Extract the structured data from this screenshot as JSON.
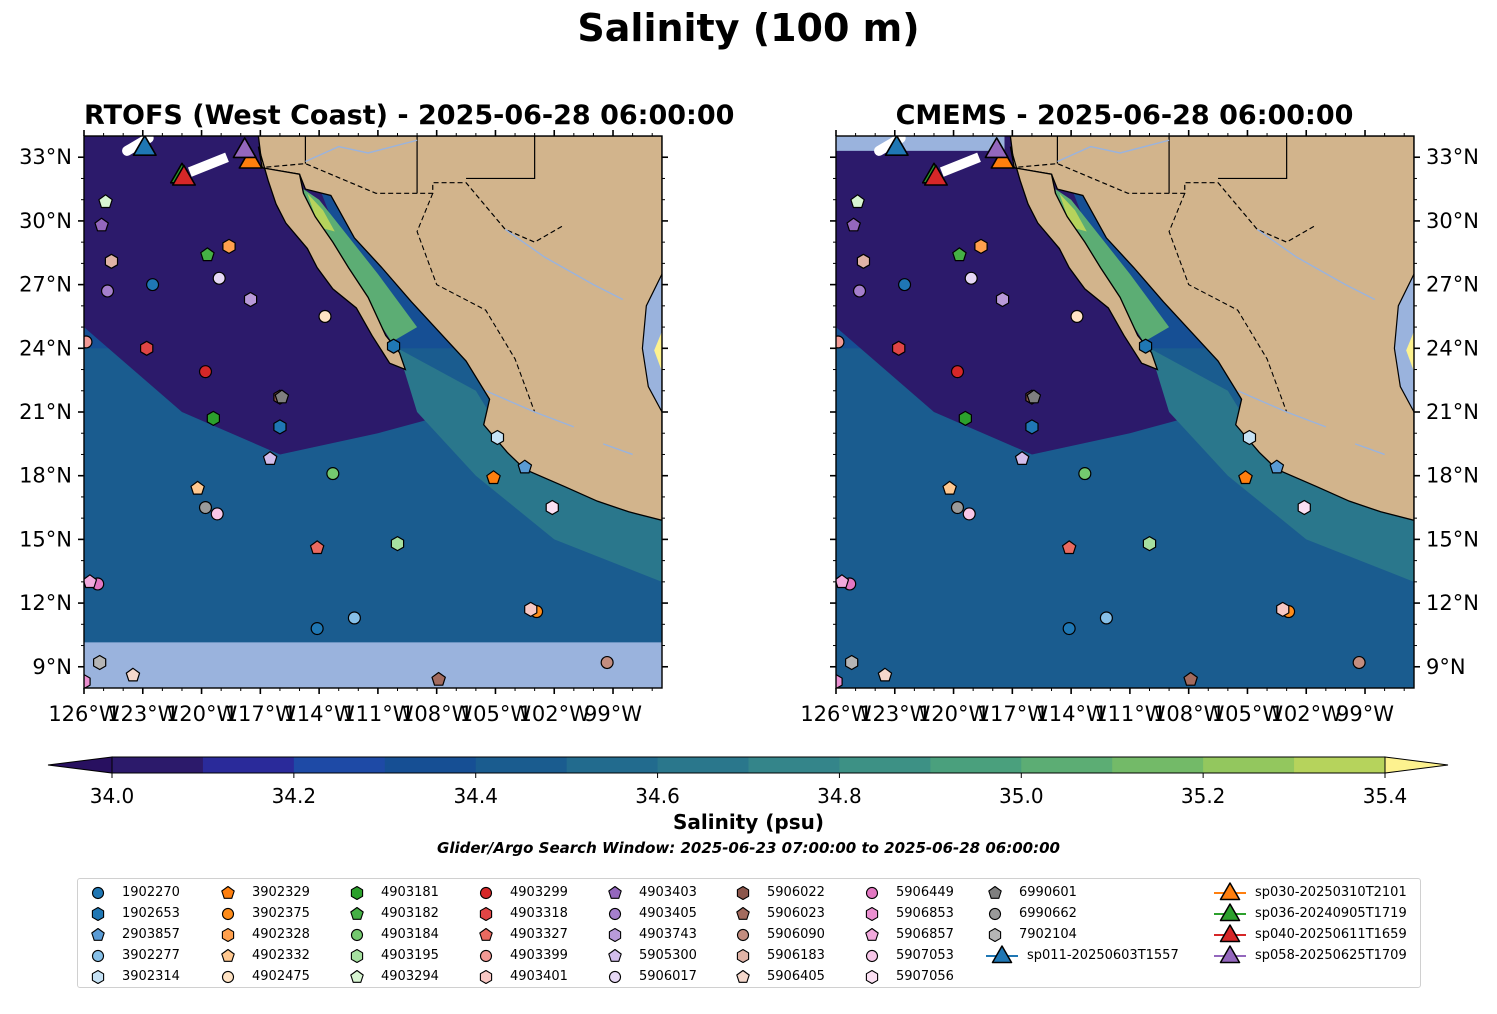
{
  "title": "Salinity (100 m)",
  "panels": [
    {
      "id": "rtofs",
      "title": "RTOFS (West Coast) - 2025-06-28 06:00:00"
    },
    {
      "id": "cmems",
      "title": "CMEMS - 2025-06-28 06:00:00"
    }
  ],
  "map_extent": {
    "lon": [
      -126,
      -96.5
    ],
    "lat": [
      8,
      34
    ]
  },
  "lon_ticks": [
    "126°W",
    "123°W",
    "120°W",
    "117°W",
    "114°W",
    "111°W",
    "108°W",
    "105°W",
    "102°W",
    "99°W"
  ],
  "lat_ticks": [
    "33°N",
    "30°N",
    "27°N",
    "24°N",
    "21°N",
    "18°N",
    "15°N",
    "12°N",
    "9°N"
  ],
  "colorbar": {
    "label": "Salinity (psu)",
    "ticks": [
      "34.0",
      "34.2",
      "34.4",
      "34.6",
      "34.8",
      "35.0",
      "35.2",
      "35.4"
    ],
    "range": [
      34.0,
      35.4
    ],
    "colors": [
      "#2c1a6b",
      "#2a2a9a",
      "#1e4aa6",
      "#164f94",
      "#1a5c8f",
      "#226b8e",
      "#2a778c",
      "#34858a",
      "#3d9185",
      "#4aa07d",
      "#5cad74",
      "#73ba68",
      "#93c75e",
      "#b6d35c",
      "#d2df6d"
    ],
    "under_color": "#281060",
    "over_color": "#fdf28f"
  },
  "search_window": "Glider/Argo Search Window: 2025-06-23 07:00:00 to 2025-06-28 06:00:00",
  "colors": {
    "land": "#d2b48c",
    "nodata": "#9ab3dd",
    "coast": "#000000",
    "rivers": "#9ab3dd"
  },
  "legend": [
    {
      "label": "1902270",
      "marker": "circle",
      "color": "#1f77b4"
    },
    {
      "label": "1902653",
      "marker": "hexagon",
      "color": "#1f77b4"
    },
    {
      "label": "2903857",
      "marker": "pentagon",
      "color": "#5a9bd5"
    },
    {
      "label": "3902277",
      "marker": "circle",
      "color": "#87c0e8"
    },
    {
      "label": "3902314",
      "marker": "hexagon",
      "color": "#c6e2f5"
    },
    {
      "label": "3902329",
      "marker": "pentagon",
      "color": "#ff7f0e"
    },
    {
      "label": "3902375",
      "marker": "circle",
      "color": "#ff8c1a"
    },
    {
      "label": "4902328",
      "marker": "hexagon",
      "color": "#ffa04d"
    },
    {
      "label": "4902332",
      "marker": "pentagon",
      "color": "#ffc890"
    },
    {
      "label": "4902475",
      "marker": "circle",
      "color": "#ffe3c4"
    },
    {
      "label": "4903181",
      "marker": "hexagon",
      "color": "#2ca02c"
    },
    {
      "label": "4903182",
      "marker": "pentagon",
      "color": "#45b045"
    },
    {
      "label": "4903184",
      "marker": "circle",
      "color": "#74c96f"
    },
    {
      "label": "4903195",
      "marker": "hexagon",
      "color": "#a6e0a0"
    },
    {
      "label": "4903294",
      "marker": "pentagon",
      "color": "#d8f5d2"
    },
    {
      "label": "4903299",
      "marker": "circle",
      "color": "#d62728"
    },
    {
      "label": "4903318",
      "marker": "hexagon",
      "color": "#e04545"
    },
    {
      "label": "4903327",
      "marker": "pentagon",
      "color": "#ea6a60"
    },
    {
      "label": "4903399",
      "marker": "circle",
      "color": "#f29a95"
    },
    {
      "label": "4903401",
      "marker": "hexagon",
      "color": "#f8c8c4"
    },
    {
      "label": "4903403",
      "marker": "pentagon",
      "color": "#9467bd"
    },
    {
      "label": "4903405",
      "marker": "circle",
      "color": "#a57fcc"
    },
    {
      "label": "4903743",
      "marker": "hexagon",
      "color": "#b99ad9"
    },
    {
      "label": "5905300",
      "marker": "pentagon",
      "color": "#d3bdeb"
    },
    {
      "label": "5906017",
      "marker": "circle",
      "color": "#e6d8f5"
    },
    {
      "label": "5906022",
      "marker": "hexagon",
      "color": "#8c564b"
    },
    {
      "label": "5906023",
      "marker": "pentagon",
      "color": "#a36b5e"
    },
    {
      "label": "5906090",
      "marker": "circle",
      "color": "#c38d7f"
    },
    {
      "label": "5906183",
      "marker": "hexagon",
      "color": "#e0b3a6"
    },
    {
      "label": "5906405",
      "marker": "pentagon",
      "color": "#f5d8cc"
    },
    {
      "label": "5906449",
      "marker": "circle",
      "color": "#e377c2"
    },
    {
      "label": "5906853",
      "marker": "hexagon",
      "color": "#ea8fd0"
    },
    {
      "label": "5906857",
      "marker": "pentagon",
      "color": "#f2aadd"
    },
    {
      "label": "5907053",
      "marker": "circle",
      "color": "#f7c6e8"
    },
    {
      "label": "5907056",
      "marker": "hexagon",
      "color": "#fbe0f3"
    },
    {
      "label": "6990601",
      "marker": "pentagon",
      "color": "#7f7f7f"
    },
    {
      "label": "6990662",
      "marker": "circle",
      "color": "#9a9a9a"
    },
    {
      "label": "7902104",
      "marker": "hexagon",
      "color": "#b5b5b5"
    },
    {
      "label": "sp011-20250603T1557",
      "marker": "triangle",
      "color": "#1f77b4"
    },
    {
      "label": "sp030-20250310T2101",
      "marker": "triangle",
      "color": "#ff7f0e"
    },
    {
      "label": "sp036-20240905T1719",
      "marker": "triangle",
      "color": "#2ca02c"
    },
    {
      "label": "sp040-20250611T1659",
      "marker": "triangle",
      "color": "#d62728"
    },
    {
      "label": "sp058-20250625T1709",
      "marker": "triangle",
      "color": "#9467bd"
    }
  ]
}
